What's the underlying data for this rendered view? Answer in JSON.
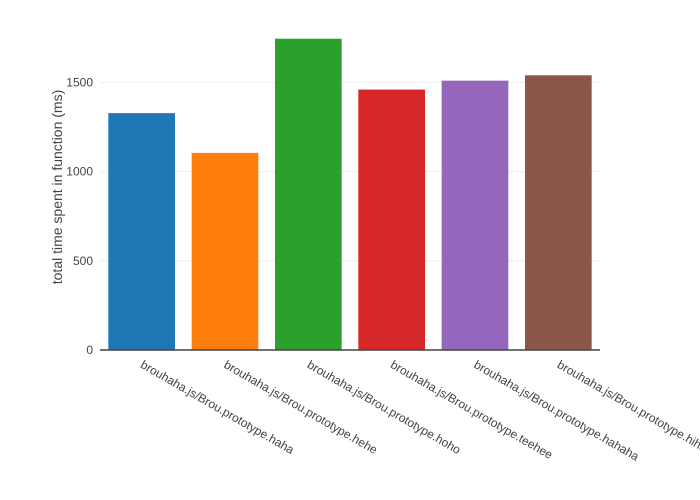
{
  "chart_data": {
    "type": "bar",
    "categories": [
      "brouhaha.js/Brou.prototype.haha",
      "brouhaha.js/Brou.prototype.hehe",
      "brouhaha.js/Brou.prototype.hoho",
      "brouhaha.js/Brou.prototype.teehee",
      "brouhaha.js/Brou.prototype.hahaha",
      "brouhaha.js/Brou.prototype.hihihi"
    ],
    "values": [
      1328,
      1105,
      1745,
      1460,
      1510,
      1540
    ],
    "colors": [
      "#1f77b4",
      "#ff7f0e",
      "#2ca02c",
      "#d62728",
      "#9467bd",
      "#8c564b"
    ],
    "xlabel": "",
    "ylabel": "total time spent in function (ms)",
    "ylim": [
      0,
      1850
    ],
    "yticks": [
      0,
      500,
      1000,
      1500
    ],
    "ytick_labels": [
      "0",
      "500",
      "1000",
      "1500"
    ],
    "grid": true,
    "axis_color": "#444444",
    "grid_color": "#eeeeee"
  }
}
